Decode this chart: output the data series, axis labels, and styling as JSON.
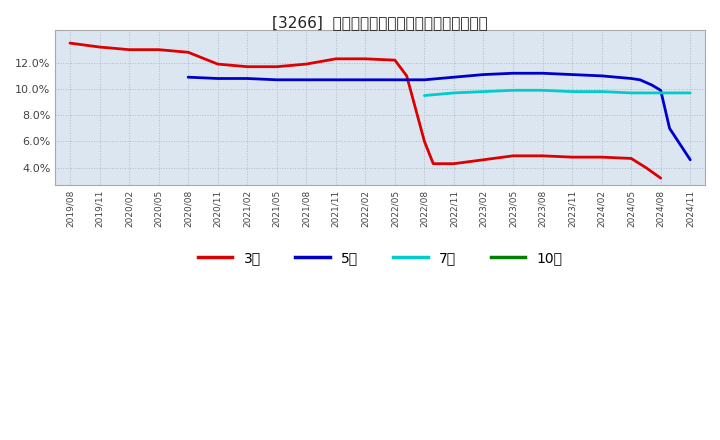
{
  "title": "[3266]  当期純利益マージンの標準偏差の推移",
  "background_color": "#ffffff",
  "plot_bg_color": "#dce6f0",
  "grid_color": "#b0b8c8",
  "ylim": [
    0.027,
    0.145
  ],
  "yticks": [
    0.04,
    0.06,
    0.08,
    0.1,
    0.12
  ],
  "xtick_labels": [
    "2019/08",
    "2019/11",
    "2020/02",
    "2020/05",
    "2020/08",
    "2020/11",
    "2021/02",
    "2021/05",
    "2021/08",
    "2021/11",
    "2022/02",
    "2022/05",
    "2022/08",
    "2022/11",
    "2023/02",
    "2023/05",
    "2023/08",
    "2023/11",
    "2024/02",
    "2024/05",
    "2024/08",
    "2024/11"
  ],
  "series": {
    "3yr": {
      "color": "#dd0000",
      "label": "3年",
      "x": [
        0,
        1,
        2,
        3,
        4,
        5,
        6,
        7,
        8,
        9,
        10,
        11,
        11.4,
        11.7,
        12,
        12.3,
        13,
        14,
        15,
        16,
        17,
        18,
        19,
        19.5,
        20
      ],
      "y": [
        0.135,
        0.132,
        0.13,
        0.13,
        0.128,
        0.119,
        0.117,
        0.117,
        0.119,
        0.123,
        0.123,
        0.122,
        0.11,
        0.085,
        0.06,
        0.043,
        0.043,
        0.046,
        0.049,
        0.049,
        0.048,
        0.048,
        0.047,
        0.04,
        0.032
      ]
    },
    "5yr": {
      "color": "#0000cc",
      "label": "5年",
      "x": [
        4,
        5,
        6,
        7,
        8,
        9,
        10,
        11,
        12,
        13,
        14,
        15,
        16,
        17,
        18,
        19,
        19.3,
        19.7,
        20,
        20.3,
        21
      ],
      "y": [
        0.109,
        0.108,
        0.108,
        0.107,
        0.107,
        0.107,
        0.107,
        0.107,
        0.107,
        0.109,
        0.111,
        0.112,
        0.112,
        0.111,
        0.11,
        0.108,
        0.107,
        0.103,
        0.099,
        0.07,
        0.046
      ]
    },
    "7yr": {
      "color": "#00cccc",
      "label": "7年",
      "x": [
        12,
        13,
        14,
        15,
        16,
        17,
        18,
        19,
        20,
        21
      ],
      "y": [
        0.095,
        0.097,
        0.098,
        0.099,
        0.099,
        0.098,
        0.098,
        0.097,
        0.097,
        0.097
      ]
    },
    "10yr": {
      "color": "#008000",
      "label": "10年",
      "x": [],
      "y": []
    }
  },
  "legend_entries": [
    "3年",
    "5年",
    "7年",
    "10年"
  ],
  "legend_colors": [
    "#dd0000",
    "#0000cc",
    "#00cccc",
    "#008000"
  ]
}
